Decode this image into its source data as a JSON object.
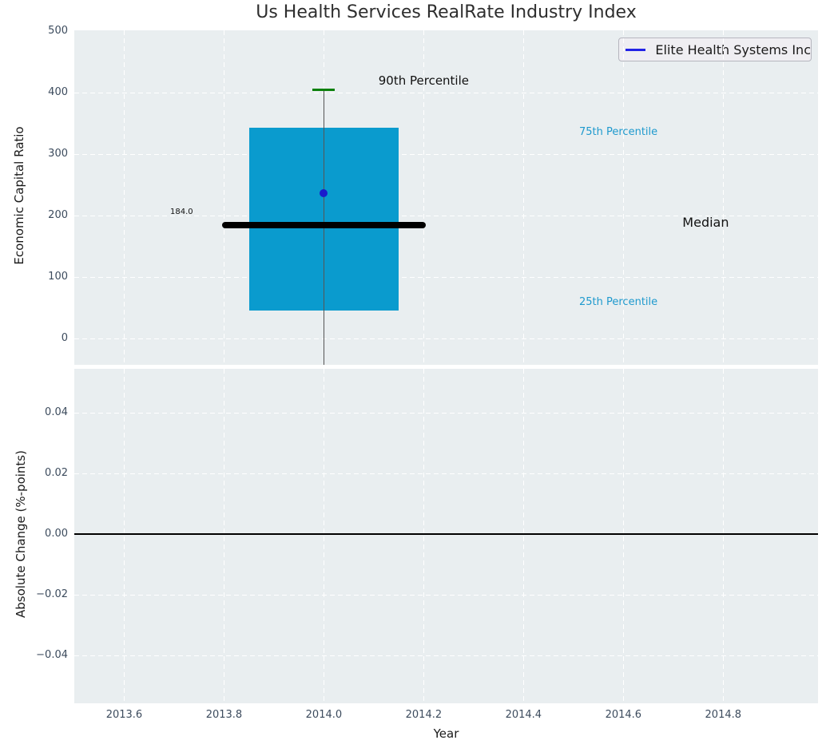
{
  "figure": {
    "title": "Us Health Services RealRate Industry Index"
  },
  "legend": {
    "label": "Elite Health Systems Inc",
    "line_color": "#2222e6",
    "position": "upper right"
  },
  "colors": {
    "plot_bg": "#e9eef0",
    "grid": "#ffffff",
    "box_fill": "#0a9bce",
    "median_line": "#000000",
    "whisker": "#555555",
    "p90_cap": "#0b800b",
    "company_dot": "#1a1acc",
    "tick_label": "#3c4b5d",
    "zero_line": "#000000",
    "title_color": "#2e2e2e"
  },
  "chart_data": [
    {
      "type": "box",
      "title": "Us Health Services RealRate Industry Index",
      "ylabel": "Economic Capital Ratio",
      "xlabel": "",
      "xlim": [
        2013.5,
        2014.99
      ],
      "ylim": [
        -43,
        501
      ],
      "yticks": [
        0,
        100,
        200,
        300,
        400,
        500
      ],
      "ytick_labels": [
        "0",
        "100",
        "200",
        "300",
        "400",
        "500"
      ],
      "xticks": [
        2013.6,
        2013.8,
        2014.0,
        2014.2,
        2014.4,
        2014.6,
        2014.8
      ],
      "grid": true,
      "legend_entries": [
        "Elite Health Systems Inc"
      ],
      "box": {
        "x": 2014.0,
        "box_left": 2013.85,
        "box_right": 2014.15,
        "q1": 45,
        "median": 184,
        "q3": 343,
        "p90": 404,
        "whisker_low_clipped": true,
        "company_value": 236,
        "median_label": "184.0",
        "median_line_left": 2013.796,
        "median_line_right": 2014.204,
        "cap_halfwidth_years": 0.0225
      },
      "annotations": [
        {
          "text": "90th Percentile",
          "x": 2014.2,
          "y": 417,
          "size": 15,
          "color": "#111111"
        },
        {
          "text": "75th Percentile",
          "x": 2014.59,
          "y": 334,
          "size": 13,
          "color": "#1f9ace"
        },
        {
          "text": "Median",
          "x": 2014.765,
          "y": 186,
          "size": 16,
          "color": "#111111"
        },
        {
          "text": "25th Percentile",
          "x": 2014.59,
          "y": 57,
          "size": 13,
          "color": "#1f9ace"
        },
        {
          "text": "184.0",
          "x": 2013.715,
          "y": 204,
          "size": 10,
          "color": "#111111"
        }
      ]
    },
    {
      "type": "line",
      "title": "",
      "ylabel": "Absolute Change (%-points)",
      "xlabel": "Year",
      "xlim": [
        2013.5,
        2014.99
      ],
      "ylim": [
        -0.0558,
        0.0545
      ],
      "yticks": [
        0.04,
        0.02,
        0.0,
        -0.02,
        -0.04
      ],
      "ytick_labels": [
        "0.04",
        "0.02",
        "0.00",
        "−0.02",
        "−0.04"
      ],
      "xticks": [
        2013.6,
        2013.8,
        2014.0,
        2014.2,
        2014.4,
        2014.6,
        2014.8
      ],
      "xtick_labels": [
        "2013.6",
        "2013.8",
        "2014.0",
        "2014.2",
        "2014.4",
        "2014.6",
        "2014.8"
      ],
      "grid": true,
      "zero_line": 0.0,
      "series": []
    }
  ]
}
